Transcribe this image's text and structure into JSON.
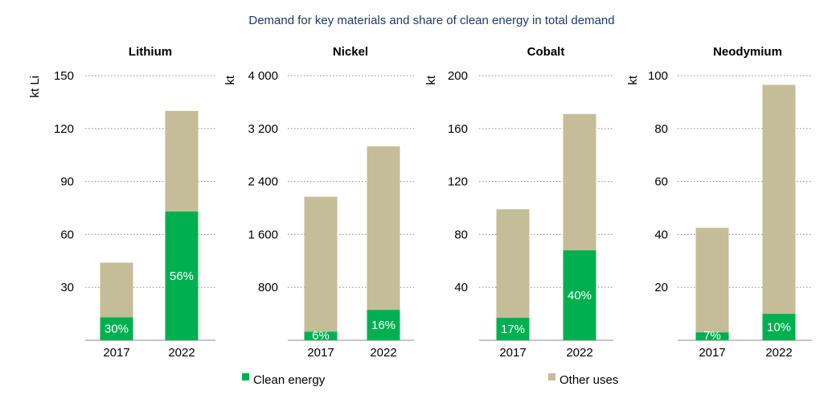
{
  "title": "Demand for key materials and share of clean energy in total demand",
  "colors": {
    "clean": "#00b050",
    "other": "#c4bd97",
    "title": "#1f3864"
  },
  "legend": {
    "clean_label": "Clean energy",
    "other_label": "Other uses"
  },
  "chart_data": [
    {
      "type": "bar",
      "stacked": true,
      "title": "Lithium",
      "ylabel": "kt Li",
      "categories": [
        "2017",
        "2022"
      ],
      "ylim": [
        0,
        150
      ],
      "yticks": [
        30,
        60,
        90,
        120,
        150
      ],
      "yticklabels": [
        "30",
        "60",
        "90",
        "120",
        "150"
      ],
      "series": [
        {
          "name": "Clean energy",
          "values": [
            13,
            73
          ]
        },
        {
          "name": "Other uses",
          "values": [
            31,
            57
          ]
        }
      ],
      "data_labels": [
        "30%",
        "56%"
      ]
    },
    {
      "type": "bar",
      "stacked": true,
      "title": "Nickel",
      "ylabel": "kt",
      "categories": [
        "2017",
        "2022"
      ],
      "ylim": [
        0,
        4000
      ],
      "yticks": [
        800,
        1600,
        2400,
        3200,
        4000
      ],
      "yticklabels": [
        "800",
        "1 600",
        "2 400",
        "3 200",
        "4 000"
      ],
      "series": [
        {
          "name": "Clean energy",
          "values": [
            130,
            460
          ]
        },
        {
          "name": "Other uses",
          "values": [
            2040,
            2470
          ]
        }
      ],
      "data_labels": [
        "6%",
        "16%"
      ]
    },
    {
      "type": "bar",
      "stacked": true,
      "title": "Cobalt",
      "ylabel": "kt",
      "categories": [
        "2017",
        "2022"
      ],
      "ylim": [
        0,
        200
      ],
      "yticks": [
        40,
        80,
        120,
        160,
        200
      ],
      "yticklabels": [
        "40",
        "80",
        "120",
        "160",
        "200"
      ],
      "series": [
        {
          "name": "Clean energy",
          "values": [
            17,
            68
          ]
        },
        {
          "name": "Other uses",
          "values": [
            82,
            103
          ]
        }
      ],
      "data_labels": [
        "17%",
        "40%"
      ]
    },
    {
      "type": "bar",
      "stacked": true,
      "title": "Neodymium",
      "ylabel": "kt",
      "categories": [
        "2017",
        "2022"
      ],
      "ylim": [
        0,
        100
      ],
      "yticks": [
        20,
        40,
        60,
        80,
        100
      ],
      "yticklabels": [
        "20",
        "40",
        "60",
        "80",
        "100"
      ],
      "series": [
        {
          "name": "Clean energy",
          "values": [
            3,
            10
          ]
        },
        {
          "name": "Other uses",
          "values": [
            39.5,
            86.5
          ]
        }
      ],
      "data_labels": [
        "7%",
        "10%"
      ]
    }
  ]
}
